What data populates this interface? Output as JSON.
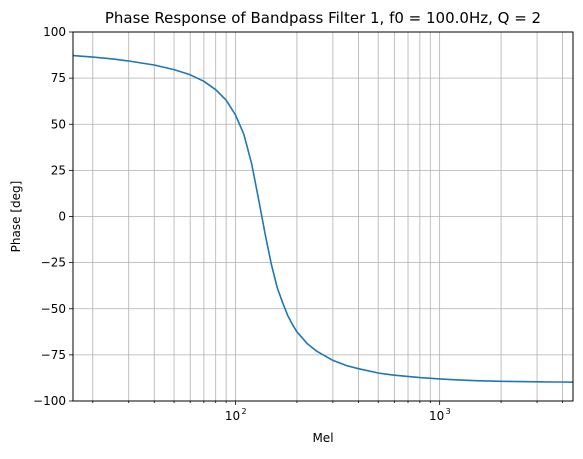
{
  "chart_data": {
    "type": "line",
    "title": "Phase Response of Bandpass Filter 1, f0 = 100.0Hz, Q = 2",
    "xlabel": "Mel",
    "ylabel": "Phase [deg]",
    "xscale": "log",
    "xlim": [
      16,
      4500
    ],
    "ylim": [
      -100,
      100
    ],
    "grid": true,
    "series_color": "#1f77b4",
    "yticks": [
      -100,
      -75,
      -50,
      -25,
      0,
      25,
      50,
      75,
      100
    ],
    "ytick_labels": [
      "−100",
      "−75",
      "−50",
      "−25",
      "0",
      "25",
      "50",
      "75",
      "100"
    ],
    "xticks_major": [
      {
        "value": 100,
        "base": "10",
        "exp": "2"
      },
      {
        "value": 1000,
        "base": "10",
        "exp": "3"
      }
    ],
    "series": [
      {
        "x": [
          16,
          20,
          25,
          30,
          40,
          50,
          60,
          70,
          80,
          90,
          100,
          110,
          120,
          130,
          140,
          150,
          160,
          170,
          180,
          190,
          200,
          225,
          250,
          300,
          350,
          400,
          500,
          600,
          800,
          1000,
          1200,
          1500,
          2000,
          2500,
          3000,
          3500,
          4000,
          4500
        ],
        "y": [
          87.2,
          86.4,
          85.4,
          84.3,
          82.1,
          79.6,
          76.8,
          73.3,
          68.7,
          63.1,
          55.0,
          44.5,
          28.5,
          9.0,
          -10.0,
          -26.0,
          -38.5,
          -46.5,
          -53.5,
          -58.5,
          -62.5,
          -69.0,
          -73.0,
          -78.0,
          -80.8,
          -82.5,
          -84.8,
          -86.0,
          -87.3,
          -88.0,
          -88.5,
          -89.0,
          -89.3,
          -89.5,
          -89.6,
          -89.7,
          -89.7,
          -89.8
        ]
      }
    ]
  }
}
